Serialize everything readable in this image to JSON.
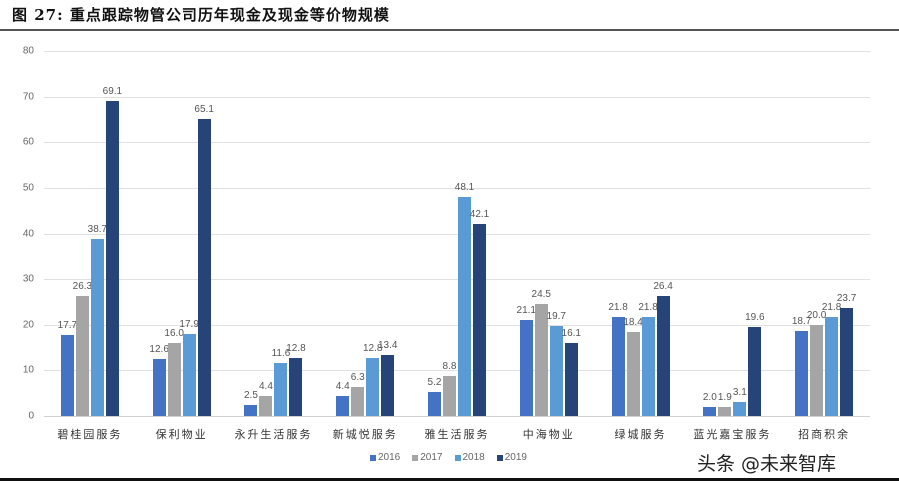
{
  "header": {
    "title": "图 27:  重点跟踪物管公司历年现金及现金等价物规模"
  },
  "watermark": "头条 @未来智库",
  "colors": {
    "2016": "#4472c4",
    "2017": "#a5a5a5",
    "2018": "#5b9bd5",
    "2019": "#264478"
  },
  "chart_data": {
    "type": "bar",
    "title": "重点跟踪物管公司历年现金及现金等价物规模",
    "xlabel": "",
    "ylabel": "",
    "ylim": [
      0,
      80
    ],
    "yticks": [
      0,
      10,
      20,
      30,
      40,
      50,
      60,
      70,
      80
    ],
    "grid": true,
    "legend_position": "bottom",
    "categories": [
      "碧桂园服务",
      "保利物业",
      "永升生活服务",
      "新城悦服务",
      "雅生活服务",
      "中海物业",
      "绿城服务",
      "蓝光嘉宝服务",
      "招商积余"
    ],
    "series": [
      {
        "name": "2016",
        "values": [
          17.7,
          12.6,
          2.5,
          4.4,
          5.2,
          21.1,
          21.8,
          2.0,
          18.7
        ]
      },
      {
        "name": "2017",
        "values": [
          26.3,
          16.0,
          4.4,
          6.3,
          8.8,
          24.5,
          18.4,
          1.9,
          20.0
        ]
      },
      {
        "name": "2018",
        "values": [
          38.7,
          17.9,
          11.6,
          12.8,
          48.1,
          19.7,
          21.8,
          3.1,
          21.8
        ]
      },
      {
        "name": "2019",
        "values": [
          69.1,
          65.1,
          12.8,
          13.4,
          42.1,
          16.1,
          26.4,
          19.6,
          23.7
        ]
      }
    ]
  },
  "labels": {
    "yticks": [
      "0",
      "10",
      "20",
      "30",
      "40",
      "50",
      "60",
      "70",
      "80"
    ],
    "categories": [
      "碧桂园服务",
      "保利物业",
      "永升生活服务",
      "新城悦服务",
      "雅生活服务",
      "中海物业",
      "绿城服务",
      "蓝光嘉宝服务",
      "招商积余"
    ],
    "legend": [
      "2016",
      "2017",
      "2018",
      "2019"
    ],
    "values": [
      [
        "17.7",
        "12.6",
        "2.5",
        "4.4",
        "5.2",
        "21.1",
        "21.8",
        "2.0",
        "18.7"
      ],
      [
        "26.3",
        "16.0",
        "4.4",
        "6.3",
        "8.8",
        "24.5",
        "18.4",
        "1.9",
        "20.0"
      ],
      [
        "38.7",
        "17.9",
        "11.6",
        "12.8",
        "48.1",
        "19.7",
        "21.8",
        "3.1",
        "21.8"
      ],
      [
        "69.1",
        "65.1",
        "12.8",
        "13.4",
        "42.1",
        "16.1",
        "26.4",
        "19.6",
        "23.7"
      ]
    ]
  }
}
